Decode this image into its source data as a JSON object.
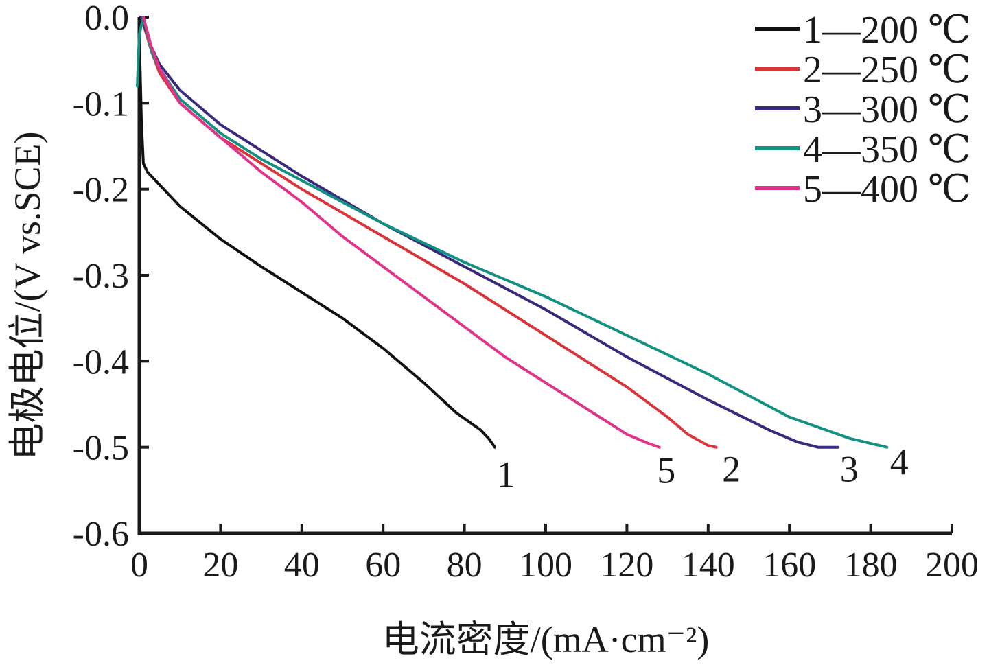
{
  "chart_data": {
    "type": "line",
    "xlabel": "电流密度/(mA·cm⁻²)",
    "ylabel": "电极电位/(V vs.SCE)",
    "xlim": [
      0,
      200
    ],
    "ylim": [
      -0.6,
      0.0
    ],
    "x_ticks": [
      "0",
      "20",
      "40",
      "60",
      "80",
      "100",
      "120",
      "140",
      "160",
      "180",
      "200"
    ],
    "y_ticks": [
      "0.0",
      "-0.1",
      "-0.2",
      "-0.3",
      "-0.4",
      "-0.5",
      "-0.6"
    ],
    "grid": false,
    "legend_position": "top-right",
    "series": [
      {
        "name": "1—200 ℃",
        "end_label": "1",
        "color": "#111111",
        "x": [
          0,
          0.5,
          1,
          2,
          5,
          10,
          20,
          30,
          40,
          50,
          60,
          70,
          78,
          84,
          86,
          87.5
        ],
        "y": [
          -0.02,
          -0.12,
          -0.17,
          -0.18,
          -0.195,
          -0.22,
          -0.258,
          -0.29,
          -0.32,
          -0.35,
          -0.385,
          -0.425,
          -0.46,
          -0.48,
          -0.49,
          -0.5
        ]
      },
      {
        "name": "2—250 ℃",
        "end_label": "2",
        "color": "#d8343a",
        "x": [
          0.5,
          3,
          5,
          10,
          20,
          30,
          40,
          60,
          80,
          100,
          110,
          120,
          130,
          135,
          140,
          142
        ],
        "y": [
          0.0,
          -0.04,
          -0.065,
          -0.1,
          -0.14,
          -0.17,
          -0.2,
          -0.255,
          -0.31,
          -0.37,
          -0.4,
          -0.43,
          -0.465,
          -0.485,
          -0.498,
          -0.5
        ]
      },
      {
        "name": "3—300 ℃",
        "end_label": "3",
        "color": "#3a2a7e",
        "x": [
          0.5,
          3,
          5,
          10,
          20,
          30,
          40,
          60,
          80,
          100,
          120,
          140,
          155,
          162,
          167,
          172
        ],
        "y": [
          0.0,
          -0.035,
          -0.055,
          -0.085,
          -0.125,
          -0.155,
          -0.185,
          -0.24,
          -0.29,
          -0.34,
          -0.395,
          -0.445,
          -0.48,
          -0.494,
          -0.5,
          -0.5
        ]
      },
      {
        "name": "4—350 ℃",
        "end_label": "4",
        "color": "#129180",
        "x": [
          -0.5,
          0,
          1,
          3,
          5,
          10,
          20,
          30,
          40,
          60,
          80,
          100,
          120,
          140,
          160,
          175,
          184
        ],
        "y": [
          -0.08,
          -0.02,
          0.0,
          -0.04,
          -0.06,
          -0.095,
          -0.135,
          -0.165,
          -0.19,
          -0.24,
          -0.285,
          -0.325,
          -0.37,
          -0.415,
          -0.465,
          -0.49,
          -0.5
        ]
      },
      {
        "name": "5—400 ℃",
        "end_label": "5",
        "color": "#e0338a",
        "x": [
          1,
          3,
          5,
          10,
          20,
          30,
          40,
          50,
          60,
          70,
          80,
          90,
          100,
          110,
          120,
          125,
          128
        ],
        "y": [
          0.0,
          -0.035,
          -0.06,
          -0.1,
          -0.14,
          -0.18,
          -0.215,
          -0.255,
          -0.29,
          -0.325,
          -0.36,
          -0.395,
          -0.425,
          -0.455,
          -0.485,
          -0.495,
          -0.5
        ]
      }
    ]
  }
}
